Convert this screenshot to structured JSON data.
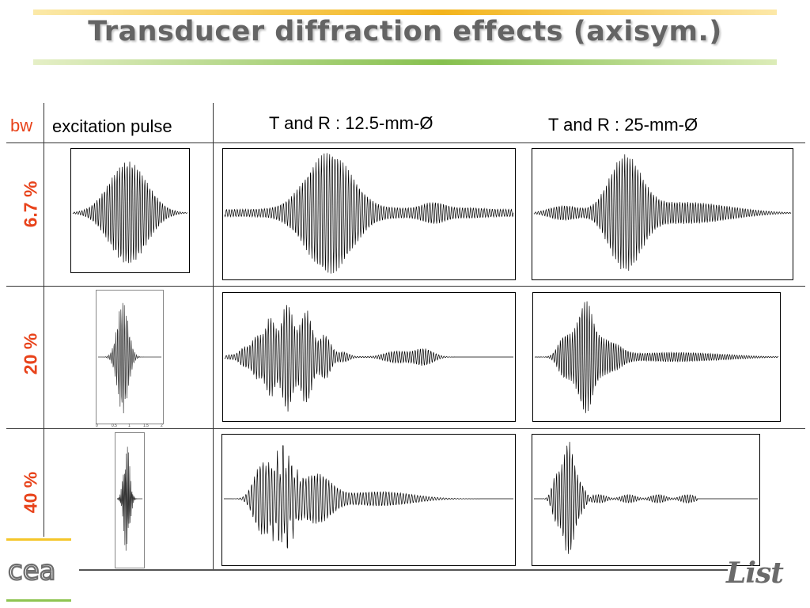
{
  "title": "Transducer diffraction effects (axisym.)",
  "headers": {
    "bw": "bw",
    "excitation": "excitation pulse",
    "col1": "T and R : 12.5-mm-Ø",
    "col2": "T and R : 25-mm-Ø"
  },
  "rows": [
    {
      "label": "6.7 %"
    },
    {
      "label": "20 %"
    },
    {
      "label": "40 %"
    }
  ],
  "tick_labels_row2": [
    "0",
    "0.5",
    "1",
    "1.5",
    "2"
  ],
  "logo_left": "cea",
  "logo_right": "List",
  "colors": {
    "accent": "#e8431b",
    "title": "#646464",
    "gold": "#f3b41c",
    "green": "#86c04e"
  }
}
